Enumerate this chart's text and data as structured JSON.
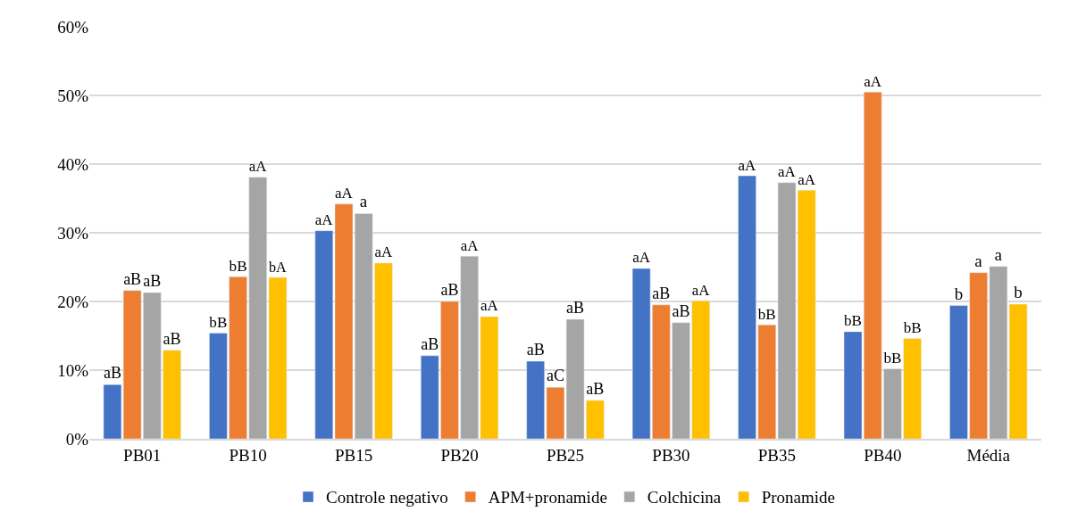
{
  "chart_data": {
    "type": "bar",
    "categories": [
      "PB01",
      "PB10",
      "PB15",
      "PB20",
      "PB25",
      "PB30",
      "PB35",
      "PB40",
      "Média"
    ],
    "series": [
      {
        "name": "Controle negativo",
        "color": "#4472c4",
        "values": [
          7.9,
          15.4,
          30.3,
          12.1,
          11.3,
          24.8,
          38.3,
          15.6,
          19.4
        ],
        "value_labels": [
          "aB",
          "bB",
          "aA",
          "aB",
          "aB",
          "aA",
          "aA",
          "bB",
          "b"
        ]
      },
      {
        "name": "APM+pronamide",
        "color": "#ed7d31",
        "values": [
          21.6,
          23.6,
          34.2,
          20.0,
          7.5,
          19.5,
          16.6,
          50.5,
          24.2
        ],
        "value_labels": [
          "aB",
          "bB",
          "aA",
          "aB",
          "aC",
          "aB",
          "bB",
          "aA",
          "a"
        ]
      },
      {
        "name": "Colchicina",
        "color": "#a5a5a5",
        "values": [
          21.3,
          38.1,
          32.8,
          26.6,
          17.4,
          16.9,
          37.3,
          10.2,
          25.1
        ],
        "value_labels": [
          "aB",
          "aA",
          "a",
          "aA",
          "aB",
          "aB",
          "aA",
          "bB",
          "a"
        ]
      },
      {
        "name": "Pronamide",
        "color": "#ffc000",
        "values": [
          12.9,
          23.5,
          25.6,
          17.8,
          5.6,
          20.1,
          36.2,
          14.6,
          19.6
        ],
        "value_labels": [
          "aB",
          "bA",
          "aA",
          "aA",
          "aB",
          "aA",
          "aA",
          "bB",
          "b"
        ]
      }
    ],
    "ylim": [
      0,
      60
    ],
    "yticks": [
      {
        "value": 0,
        "label": "0%"
      },
      {
        "value": 10,
        "label": "10%"
      },
      {
        "value": 20,
        "label": "20%"
      },
      {
        "value": 30,
        "label": "30%"
      },
      {
        "value": 40,
        "label": "40%"
      },
      {
        "value": 50,
        "label": "50%"
      },
      {
        "value": 60,
        "label": "60%"
      }
    ],
    "grid": "y",
    "legend": "bottom"
  }
}
